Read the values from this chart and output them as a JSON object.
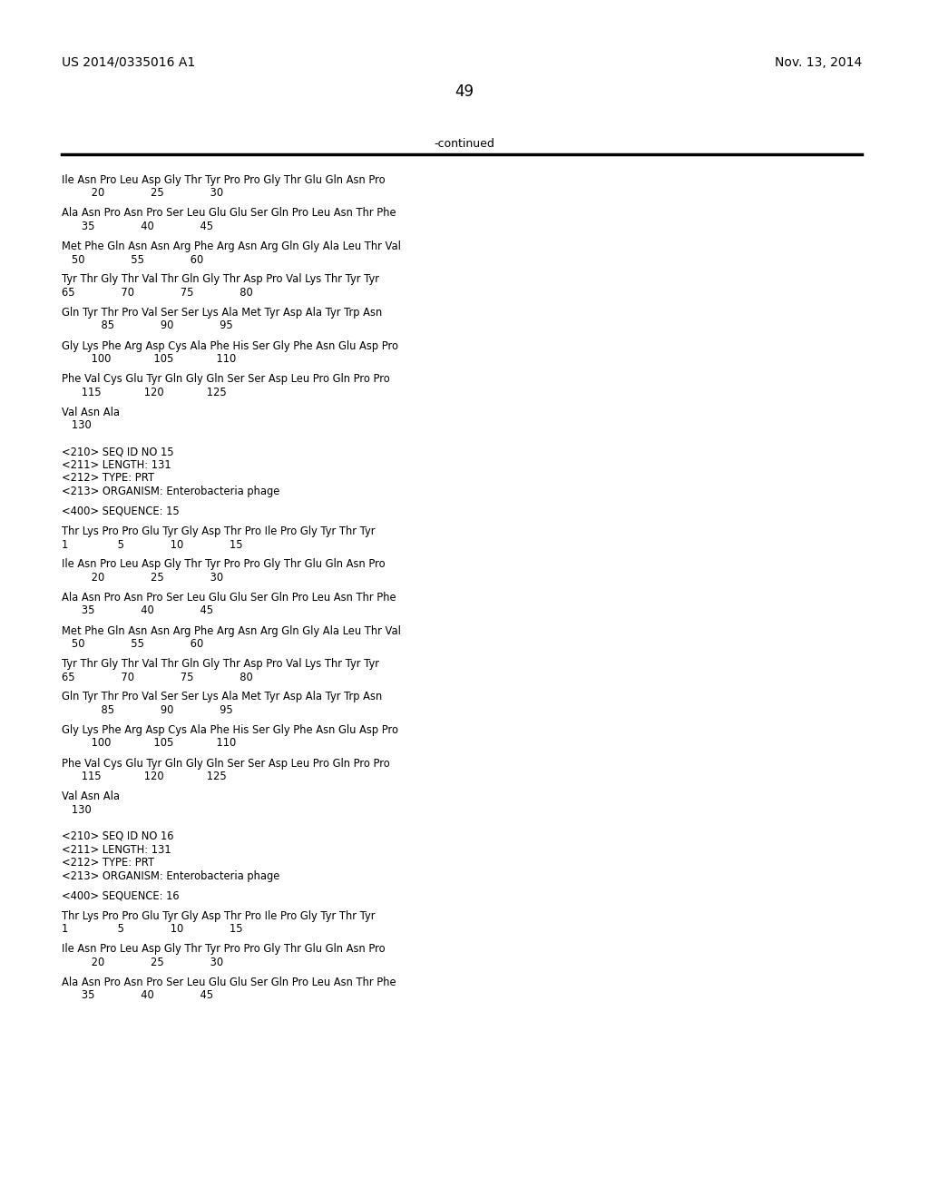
{
  "header_left": "US 2014/0335016 A1",
  "header_right": "Nov. 13, 2014",
  "page_number": "49",
  "continued_text": "-continued",
  "background_color": "#ffffff",
  "text_color": "#000000",
  "lines": [
    {
      "text": "Ile Asn Pro Leu Asp Gly Thr Tyr Pro Pro Gly Thr Glu Gln Asn Pro",
      "type": "seq"
    },
    {
      "text": "         20              25              30",
      "type": "num"
    },
    {
      "text": "",
      "type": "blank"
    },
    {
      "text": "Ala Asn Pro Asn Pro Ser Leu Glu Glu Ser Gln Pro Leu Asn Thr Phe",
      "type": "seq"
    },
    {
      "text": "      35              40              45",
      "type": "num"
    },
    {
      "text": "",
      "type": "blank"
    },
    {
      "text": "Met Phe Gln Asn Asn Arg Phe Arg Asn Arg Gln Gly Ala Leu Thr Val",
      "type": "seq"
    },
    {
      "text": "   50              55              60",
      "type": "num"
    },
    {
      "text": "",
      "type": "blank"
    },
    {
      "text": "Tyr Thr Gly Thr Val Thr Gln Gly Thr Asp Pro Val Lys Thr Tyr Tyr",
      "type": "seq"
    },
    {
      "text": "65              70              75              80",
      "type": "num"
    },
    {
      "text": "",
      "type": "blank"
    },
    {
      "text": "Gln Tyr Thr Pro Val Ser Ser Lys Ala Met Tyr Asp Ala Tyr Trp Asn",
      "type": "seq"
    },
    {
      "text": "            85              90              95",
      "type": "num"
    },
    {
      "text": "",
      "type": "blank"
    },
    {
      "text": "Gly Lys Phe Arg Asp Cys Ala Phe His Ser Gly Phe Asn Glu Asp Pro",
      "type": "seq"
    },
    {
      "text": "         100             105             110",
      "type": "num"
    },
    {
      "text": "",
      "type": "blank"
    },
    {
      "text": "Phe Val Cys Glu Tyr Gln Gly Gln Ser Ser Asp Leu Pro Gln Pro Pro",
      "type": "seq"
    },
    {
      "text": "      115             120             125",
      "type": "num"
    },
    {
      "text": "",
      "type": "blank"
    },
    {
      "text": "Val Asn Ala",
      "type": "seq"
    },
    {
      "text": "   130",
      "type": "num"
    },
    {
      "text": "",
      "type": "blank"
    },
    {
      "text": "",
      "type": "blank"
    },
    {
      "text": "<210> SEQ ID NO 15",
      "type": "meta"
    },
    {
      "text": "<211> LENGTH: 131",
      "type": "meta"
    },
    {
      "text": "<212> TYPE: PRT",
      "type": "meta"
    },
    {
      "text": "<213> ORGANISM: Enterobacteria phage",
      "type": "meta"
    },
    {
      "text": "",
      "type": "blank"
    },
    {
      "text": "<400> SEQUENCE: 15",
      "type": "meta"
    },
    {
      "text": "",
      "type": "blank"
    },
    {
      "text": "Thr Lys Pro Pro Glu Tyr Gly Asp Thr Pro Ile Pro Gly Tyr Thr Tyr",
      "type": "seq"
    },
    {
      "text": "1               5              10              15",
      "type": "num"
    },
    {
      "text": "",
      "type": "blank"
    },
    {
      "text": "Ile Asn Pro Leu Asp Gly Thr Tyr Pro Pro Gly Thr Glu Gln Asn Pro",
      "type": "seq"
    },
    {
      "text": "         20              25              30",
      "type": "num"
    },
    {
      "text": "",
      "type": "blank"
    },
    {
      "text": "Ala Asn Pro Asn Pro Ser Leu Glu Glu Ser Gln Pro Leu Asn Thr Phe",
      "type": "seq"
    },
    {
      "text": "      35              40              45",
      "type": "num"
    },
    {
      "text": "",
      "type": "blank"
    },
    {
      "text": "Met Phe Gln Asn Asn Arg Phe Arg Asn Arg Gln Gly Ala Leu Thr Val",
      "type": "seq"
    },
    {
      "text": "   50              55              60",
      "type": "num"
    },
    {
      "text": "",
      "type": "blank"
    },
    {
      "text": "Tyr Thr Gly Thr Val Thr Gln Gly Thr Asp Pro Val Lys Thr Tyr Tyr",
      "type": "seq"
    },
    {
      "text": "65              70              75              80",
      "type": "num"
    },
    {
      "text": "",
      "type": "blank"
    },
    {
      "text": "Gln Tyr Thr Pro Val Ser Ser Lys Ala Met Tyr Asp Ala Tyr Trp Asn",
      "type": "seq"
    },
    {
      "text": "            85              90              95",
      "type": "num"
    },
    {
      "text": "",
      "type": "blank"
    },
    {
      "text": "Gly Lys Phe Arg Asp Cys Ala Phe His Ser Gly Phe Asn Glu Asp Pro",
      "type": "seq"
    },
    {
      "text": "         100             105             110",
      "type": "num"
    },
    {
      "text": "",
      "type": "blank"
    },
    {
      "text": "Phe Val Cys Glu Tyr Gln Gly Gln Ser Ser Asp Leu Pro Gln Pro Pro",
      "type": "seq"
    },
    {
      "text": "      115             120             125",
      "type": "num"
    },
    {
      "text": "",
      "type": "blank"
    },
    {
      "text": "Val Asn Ala",
      "type": "seq"
    },
    {
      "text": "   130",
      "type": "num"
    },
    {
      "text": "",
      "type": "blank"
    },
    {
      "text": "",
      "type": "blank"
    },
    {
      "text": "<210> SEQ ID NO 16",
      "type": "meta"
    },
    {
      "text": "<211> LENGTH: 131",
      "type": "meta"
    },
    {
      "text": "<212> TYPE: PRT",
      "type": "meta"
    },
    {
      "text": "<213> ORGANISM: Enterobacteria phage",
      "type": "meta"
    },
    {
      "text": "",
      "type": "blank"
    },
    {
      "text": "<400> SEQUENCE: 16",
      "type": "meta"
    },
    {
      "text": "",
      "type": "blank"
    },
    {
      "text": "Thr Lys Pro Pro Glu Tyr Gly Asp Thr Pro Ile Pro Gly Tyr Thr Tyr",
      "type": "seq"
    },
    {
      "text": "1               5              10              15",
      "type": "num"
    },
    {
      "text": "",
      "type": "blank"
    },
    {
      "text": "Ile Asn Pro Leu Asp Gly Thr Tyr Pro Pro Gly Thr Glu Gln Asn Pro",
      "type": "seq"
    },
    {
      "text": "         20              25              30",
      "type": "num"
    },
    {
      "text": "",
      "type": "blank"
    },
    {
      "text": "Ala Asn Pro Asn Pro Ser Leu Glu Glu Ser Gln Pro Leu Asn Thr Phe",
      "type": "seq"
    },
    {
      "text": "      35              40              45",
      "type": "num"
    }
  ]
}
